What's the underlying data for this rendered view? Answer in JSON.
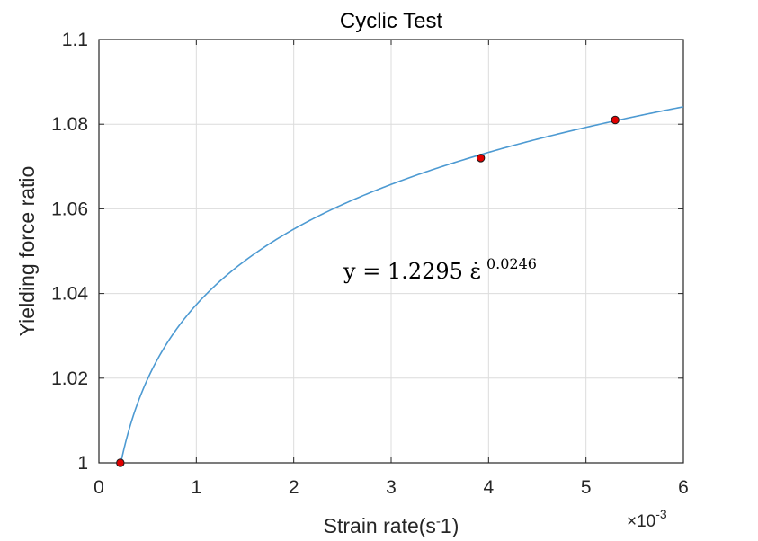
{
  "chart_data": {
    "type": "line",
    "title": "Cyclic Test",
    "xlabel": "Strain rate(s",
    "xlabel_sup": "-",
    "xlabel_tail": "1)",
    "ylabel": "Yielding force ratio",
    "x_multiplier_prefix": "×10",
    "x_multiplier_exp": "-3",
    "xlim": [
      0,
      6
    ],
    "ylim": [
      1,
      1.1
    ],
    "xticks": [
      "0",
      "1",
      "2",
      "3",
      "4",
      "5",
      "6"
    ],
    "yticks": [
      "1",
      "1.02",
      "1.04",
      "1.06",
      "1.08",
      "1.1"
    ],
    "grid": true,
    "equation": {
      "text": "y = 1.2295 ε̇",
      "exponent": "0.0246"
    },
    "fit": {
      "name": "",
      "color": "#4d9ad2",
      "coefficient": 1.2295,
      "exponent": 0.0246,
      "x_range": [
        0.22,
        6.0
      ]
    },
    "series": [
      {
        "name": "",
        "marker_color": "#e00000",
        "x": [
          0.22,
          3.92,
          5.3
        ],
        "y": [
          1.0,
          1.072,
          1.081
        ]
      }
    ]
  }
}
